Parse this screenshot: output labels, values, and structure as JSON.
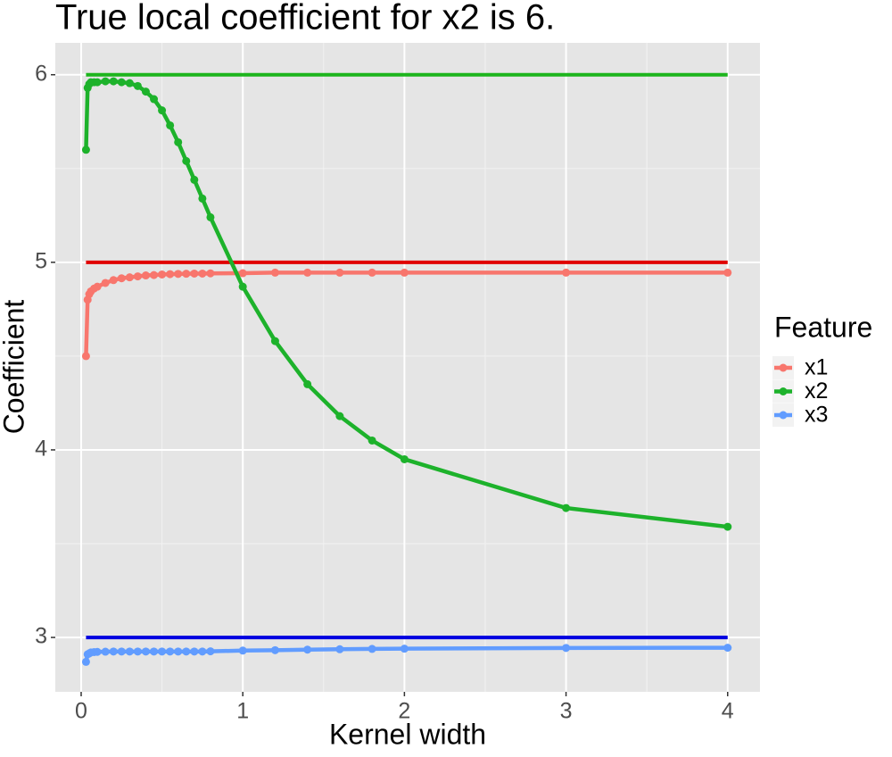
{
  "chart_data": {
    "type": "line",
    "title": "True local coefficient for x2 is 6.",
    "x_label": "Kernel width",
    "y_label": "Coefficient",
    "legend_title": "Feature",
    "legend_position": "right",
    "grid": true,
    "x": [
      0.03,
      0.04,
      0.05,
      0.06,
      0.08,
      0.1,
      0.15,
      0.2,
      0.25,
      0.3,
      0.35,
      0.4,
      0.45,
      0.5,
      0.55,
      0.6,
      0.65,
      0.7,
      0.75,
      0.8,
      1,
      1.2,
      1.4,
      1.6,
      1.8,
      2,
      3,
      4
    ],
    "series": [
      {
        "name": "x1",
        "color": "#F8766D",
        "values": [
          4.5,
          4.8,
          4.83,
          4.845,
          4.86,
          4.87,
          4.89,
          4.905,
          4.915,
          4.92,
          4.925,
          4.93,
          4.932,
          4.935,
          4.937,
          4.938,
          4.939,
          4.94,
          4.94,
          4.941,
          4.942,
          4.945,
          4.945,
          4.945,
          4.945,
          4.945,
          4.945,
          4.945
        ]
      },
      {
        "name": "x2",
        "color": "#1DB22B",
        "values": [
          5.6,
          5.93,
          5.95,
          5.96,
          5.96,
          5.96,
          5.965,
          5.965,
          5.96,
          5.955,
          5.94,
          5.91,
          5.87,
          5.81,
          5.73,
          5.64,
          5.54,
          5.44,
          5.34,
          5.24,
          4.87,
          4.58,
          4.35,
          4.18,
          4.05,
          3.95,
          3.69,
          3.59
        ]
      },
      {
        "name": "x3",
        "color": "#619CFF",
        "values": [
          2.87,
          2.91,
          2.915,
          2.92,
          2.922,
          2.923,
          2.924,
          2.925,
          2.925,
          2.925,
          2.925,
          2.925,
          2.925,
          2.925,
          2.925,
          2.925,
          2.925,
          2.925,
          2.925,
          2.926,
          2.93,
          2.932,
          2.935,
          2.937,
          2.939,
          2.94,
          2.944,
          2.945
        ]
      }
    ],
    "reference_lines": [
      {
        "value": 5,
        "color": "#E00000"
      },
      {
        "value": 6,
        "color": "#1DB51D"
      },
      {
        "value": 3,
        "color": "#0000E0"
      }
    ],
    "xlim": [
      -0.16,
      4.2
    ],
    "ylim": [
      2.71,
      6.17
    ],
    "xticks": [
      0,
      1,
      2,
      3,
      4
    ],
    "yticks": [
      3,
      4,
      5,
      6
    ],
    "minor_xticks": [
      0.5,
      1.5,
      2.5,
      3.5
    ],
    "minor_yticks": [
      3.5,
      4.5,
      5.5
    ]
  }
}
